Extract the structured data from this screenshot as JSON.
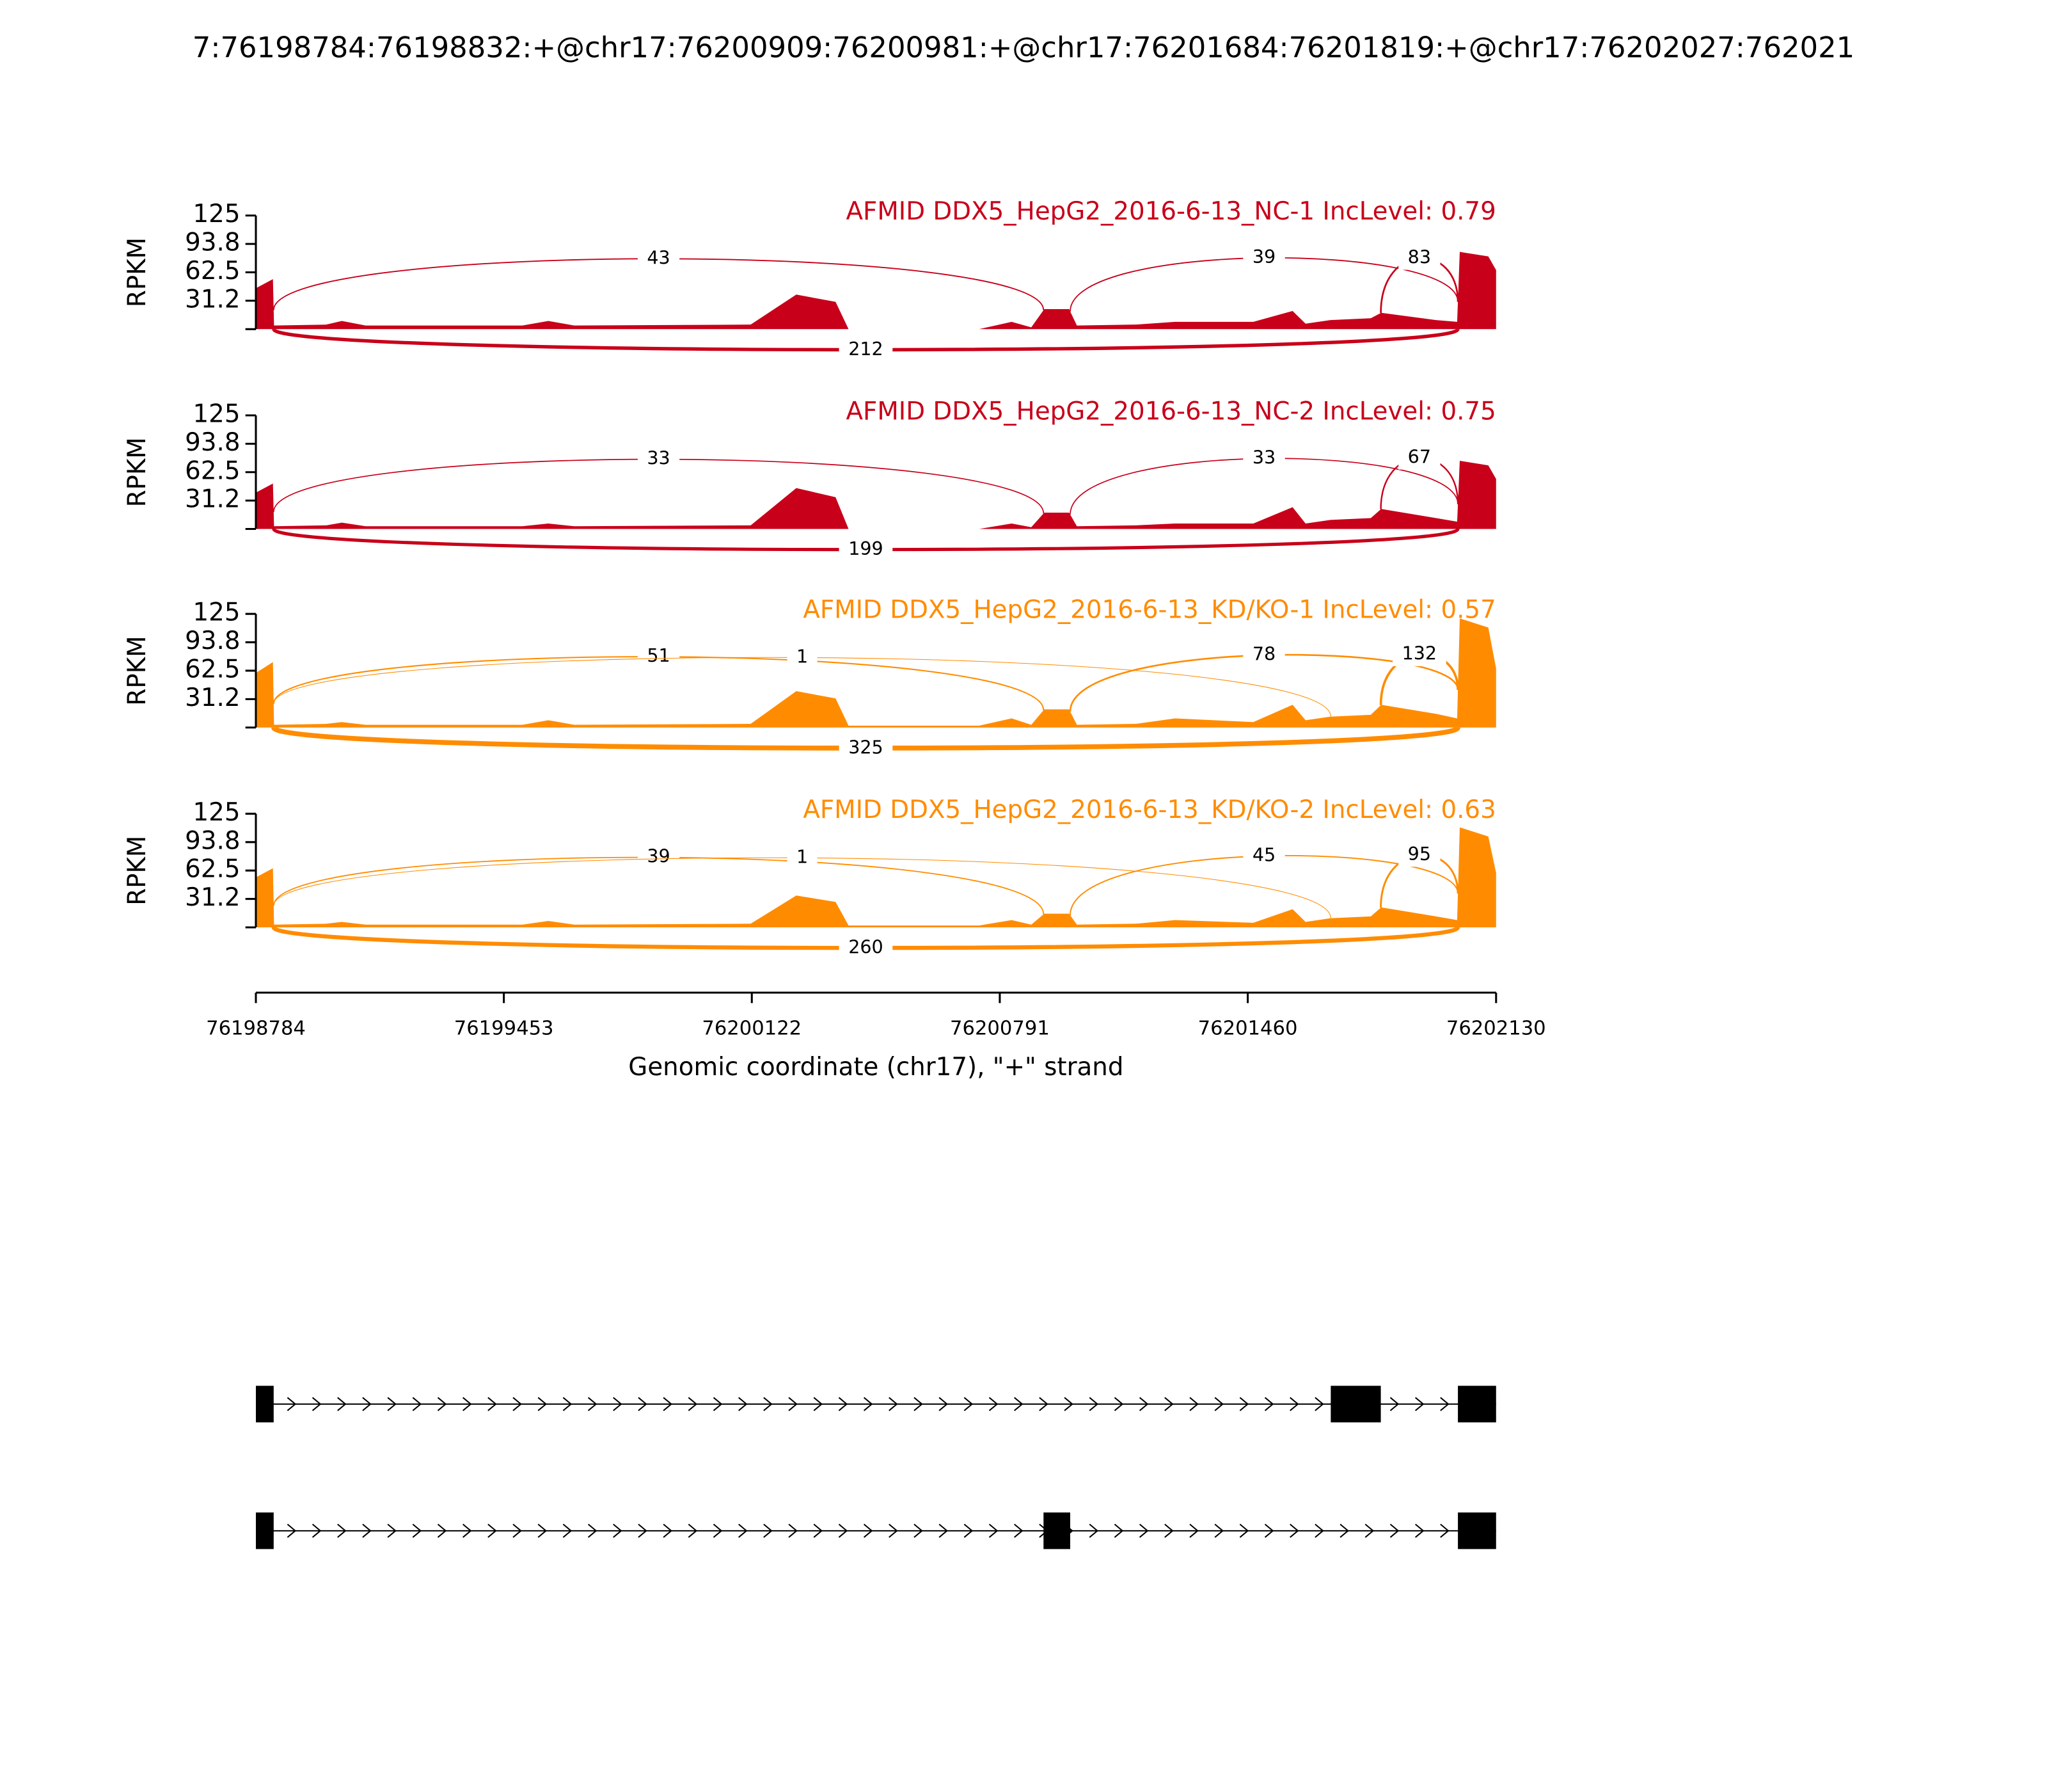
{
  "title": "7:76198784:76198832:+@chr17:76200909:76200981:+@chr17:76201684:76201819:+@chr17:76202027:762021",
  "chart_data": [
    {
      "type": "sashimi",
      "title": "AFMID DDX5_HepG2_2016-6-13_NC-1 IncLevel: 0.79",
      "color": "#c8001a",
      "ylabel": "RPKM",
      "ylim": [
        0,
        125
      ],
      "yticks": [
        {
          "value": 31.25,
          "label": "31.2"
        },
        {
          "value": 62.5,
          "label": "62.5"
        },
        {
          "value": 93.75,
          "label": "93.8"
        },
        125
      ],
      "x": [
        76198784,
        76198830,
        76198833,
        76198974,
        76199016,
        76199080,
        76199503,
        76199573,
        76199643,
        76200119,
        76200242,
        76200348,
        76200383,
        76200735,
        76200823,
        76200876,
        76200911,
        76200978,
        76200999,
        76201158,
        76201264,
        76201475,
        76201581,
        76201616,
        76201683,
        76201792,
        76201820,
        76201968,
        76202025,
        76202032,
        76202109,
        76202130
      ],
      "values": [
        45,
        55,
        4,
        5,
        9,
        4,
        4,
        9,
        4,
        5,
        38,
        30,
        0,
        0,
        8,
        2,
        22,
        22,
        4,
        5,
        8,
        8,
        20,
        6,
        10,
        12,
        18,
        10,
        8,
        85,
        80,
        65
      ],
      "junctions": [
        {
          "start": 76198832,
          "end": 76200909,
          "count": 43
        },
        {
          "start": 76200981,
          "end": 76202027,
          "count": 39
        },
        {
          "start": 76201819,
          "end": 76202027,
          "count": 83
        },
        {
          "start": 76198832,
          "end": 76202027,
          "count": 212
        }
      ]
    },
    {
      "type": "sashimi",
      "title": "AFMID DDX5_HepG2_2016-6-13_NC-2 IncLevel: 0.75",
      "color": "#c8001a",
      "ylabel": "RPKM",
      "ylim": [
        0,
        125
      ],
      "yticks": [
        {
          "value": 31.25,
          "label": "31.2"
        },
        {
          "value": 62.5,
          "label": "62.5"
        },
        {
          "value": 93.75,
          "label": "93.8"
        },
        125
      ],
      "x": [
        76198784,
        76198830,
        76198833,
        76198974,
        76199016,
        76199080,
        76199503,
        76199573,
        76199643,
        76200119,
        76200242,
        76200348,
        76200383,
        76200735,
        76200823,
        76200876,
        76200911,
        76200978,
        76200999,
        76201158,
        76201264,
        76201475,
        76201581,
        76201616,
        76201683,
        76201792,
        76201820,
        76201968,
        76202025,
        76202032,
        76202109,
        76202130
      ],
      "values": [
        40,
        50,
        3,
        4,
        7,
        3,
        3,
        6,
        3,
        4,
        45,
        35,
        0,
        0,
        6,
        2,
        18,
        18,
        3,
        4,
        6,
        6,
        24,
        6,
        10,
        12,
        22,
        12,
        8,
        75,
        70,
        55
      ],
      "junctions": [
        {
          "start": 76198832,
          "end": 76200909,
          "count": 33
        },
        {
          "start": 76200981,
          "end": 76202027,
          "count": 33
        },
        {
          "start": 76201819,
          "end": 76202027,
          "count": 67
        },
        {
          "start": 76198832,
          "end": 76202027,
          "count": 199
        }
      ]
    },
    {
      "type": "sashimi",
      "title": "AFMID DDX5_HepG2_2016-6-13_KD/KO-1 IncLevel: 0.57",
      "color": "#ff8c00",
      "ylabel": "RPKM",
      "ylim": [
        0,
        125
      ],
      "yticks": [
        {
          "value": 31.25,
          "label": "31.2"
        },
        {
          "value": 62.5,
          "label": "62.5"
        },
        {
          "value": 93.75,
          "label": "93.8"
        },
        125
      ],
      "x": [
        76198784,
        76198830,
        76198833,
        76198974,
        76199016,
        76199080,
        76199503,
        76199573,
        76199643,
        76200119,
        76200242,
        76200348,
        76200383,
        76200735,
        76200823,
        76200876,
        76200911,
        76200978,
        76200999,
        76201158,
        76201264,
        76201475,
        76201581,
        76201616,
        76201683,
        76201792,
        76201820,
        76201968,
        76202025,
        76202032,
        76202109,
        76202130
      ],
      "values": [
        60,
        72,
        3,
        4,
        6,
        3,
        3,
        8,
        3,
        4,
        40,
        32,
        2,
        2,
        10,
        3,
        20,
        20,
        3,
        4,
        10,
        6,
        25,
        8,
        12,
        14,
        25,
        15,
        10,
        120,
        110,
        65
      ],
      "junctions": [
        {
          "start": 76198832,
          "end": 76200909,
          "count": 51
        },
        {
          "start": 76198832,
          "end": 76201684,
          "count": 1
        },
        {
          "start": 76200981,
          "end": 76202027,
          "count": 78
        },
        {
          "start": 76201819,
          "end": 76202027,
          "count": 132
        },
        {
          "start": 76198832,
          "end": 76202027,
          "count": 325
        }
      ]
    },
    {
      "type": "sashimi",
      "title": "AFMID DDX5_HepG2_2016-6-13_KD/KO-2 IncLevel: 0.63",
      "color": "#ff8c00",
      "ylabel": "RPKM",
      "ylim": [
        0,
        125
      ],
      "yticks": [
        {
          "value": 31.25,
          "label": "31.2"
        },
        {
          "value": 62.5,
          "label": "62.5"
        },
        {
          "value": 93.75,
          "label": "93.8"
        },
        125
      ],
      "x": [
        76198784,
        76198830,
        76198833,
        76198974,
        76199016,
        76199080,
        76199503,
        76199573,
        76199643,
        76200119,
        76200242,
        76200348,
        76200383,
        76200735,
        76200823,
        76200876,
        76200911,
        76200978,
        76200999,
        76201158,
        76201264,
        76201475,
        76201581,
        76201616,
        76201683,
        76201792,
        76201820,
        76201968,
        76202025,
        76202032,
        76202109,
        76202130
      ],
      "values": [
        55,
        65,
        3,
        4,
        6,
        3,
        3,
        7,
        3,
        4,
        35,
        28,
        2,
        2,
        8,
        3,
        15,
        15,
        3,
        4,
        8,
        5,
        20,
        6,
        10,
        12,
        22,
        12,
        8,
        110,
        100,
        60
      ],
      "junctions": [
        {
          "start": 76198832,
          "end": 76200909,
          "count": 39
        },
        {
          "start": 76198832,
          "end": 76201684,
          "count": 1
        },
        {
          "start": 76200981,
          "end": 76202027,
          "count": 45
        },
        {
          "start": 76201819,
          "end": 76202027,
          "count": 95
        },
        {
          "start": 76198832,
          "end": 76202027,
          "count": 260
        }
      ]
    }
  ],
  "xaxis": {
    "xlim": [
      76198784,
      76202130
    ],
    "xticks": [
      76198784,
      76199453,
      76200122,
      76200791,
      76201460,
      76202130
    ],
    "label": "Genomic coordinate (chr17), \"+\" strand"
  },
  "transcripts": [
    {
      "exons": [
        [
          76198784,
          76198832
        ],
        [
          76201684,
          76201819
        ],
        [
          76202027,
          76202130
        ]
      ]
    },
    {
      "exons": [
        [
          76198784,
          76198832
        ],
        [
          76200909,
          76200981
        ],
        [
          76202027,
          76202130
        ]
      ]
    }
  ]
}
